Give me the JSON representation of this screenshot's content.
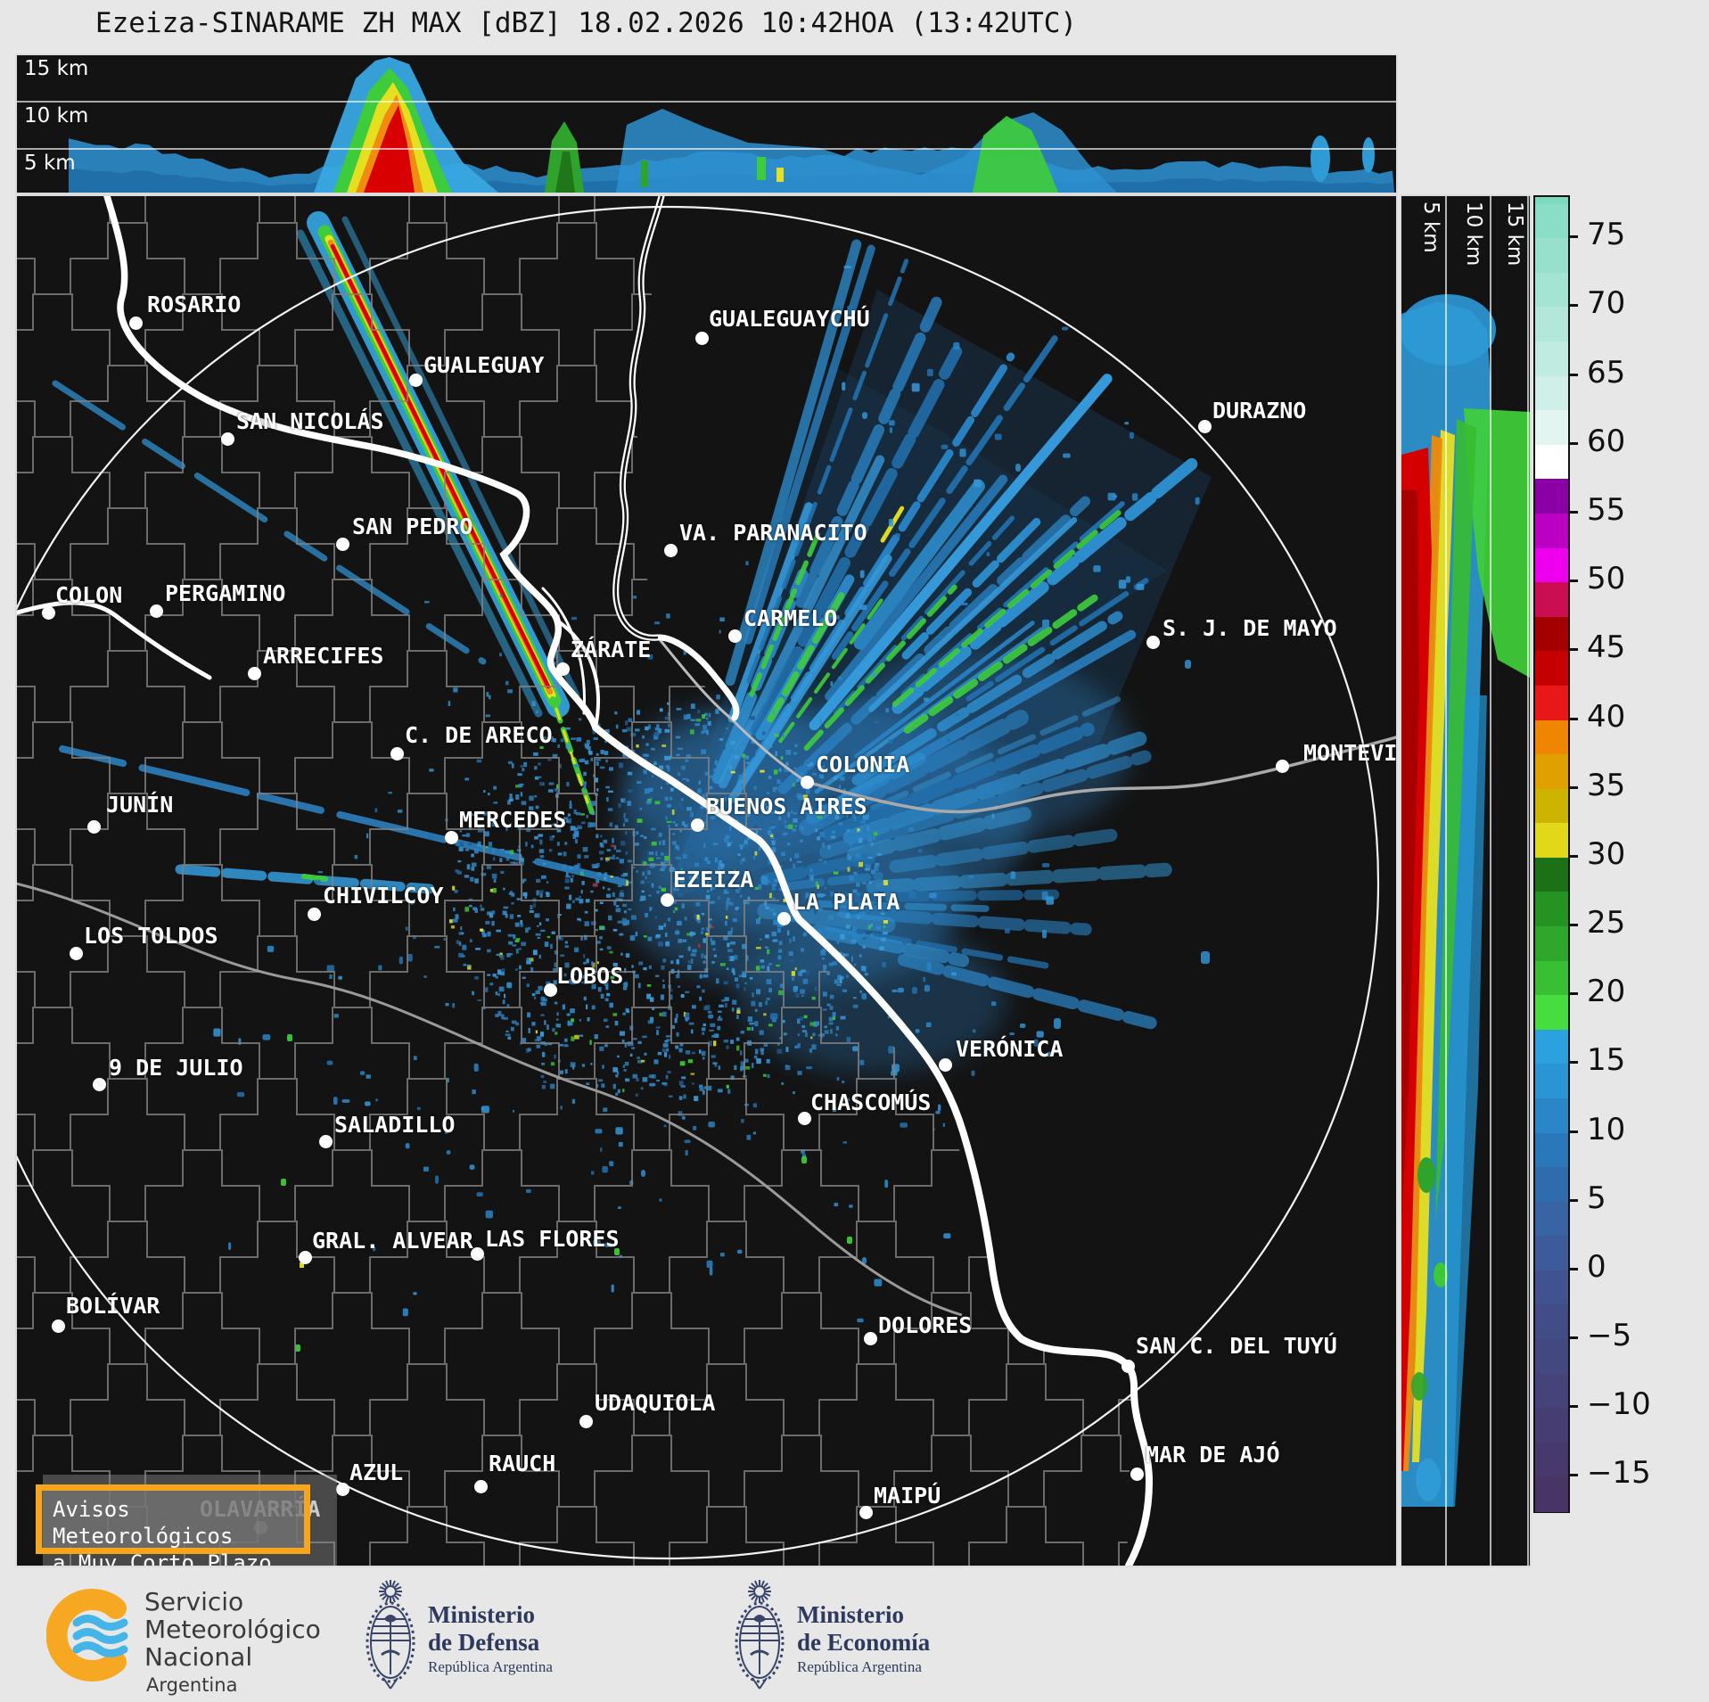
{
  "title": "Ezeiza-SINARAME ZH MAX [dBZ] 18.02.2026 10:42HOA (13:42UTC)",
  "top_panel": {
    "labels": [
      "15 km",
      "10 km",
      "5 km"
    ]
  },
  "right_panel": {
    "labels": [
      "5 km",
      "10 km",
      "15 km"
    ]
  },
  "colorbar": {
    "unit": "dBZ",
    "ticks": [
      75,
      70,
      65,
      60,
      55,
      50,
      45,
      40,
      35,
      30,
      25,
      20,
      15,
      10,
      5,
      0,
      -5,
      -10,
      -15
    ],
    "top_value": 78,
    "bottom_value": -17.5,
    "palette": [
      {
        "hi": 80.0,
        "color": "#7cdabf"
      },
      {
        "hi": 77.5,
        "color": "#8addc6"
      },
      {
        "hi": 75.0,
        "color": "#97e0cc"
      },
      {
        "hi": 72.5,
        "color": "#a4e4d3"
      },
      {
        "hi": 70.0,
        "color": "#b2e7da"
      },
      {
        "hi": 67.5,
        "color": "#c0ebe1"
      },
      {
        "hi": 65.0,
        "color": "#cfefe8"
      },
      {
        "hi": 62.5,
        "color": "#e2f5f0"
      },
      {
        "hi": 60.0,
        "color": "#ffffff"
      },
      {
        "hi": 57.5,
        "color": "#8a00a5"
      },
      {
        "hi": 55.0,
        "color": "#bb00c4"
      },
      {
        "hi": 52.5,
        "color": "#ee00ee"
      },
      {
        "hi": 50.0,
        "color": "#cb0e52"
      },
      {
        "hi": 47.5,
        "color": "#a30000"
      },
      {
        "hi": 45.0,
        "color": "#c40000"
      },
      {
        "hi": 42.5,
        "color": "#e81818"
      },
      {
        "hi": 40.0,
        "color": "#ef8500"
      },
      {
        "hi": 37.5,
        "color": "#dfa000"
      },
      {
        "hi": 35.0,
        "color": "#cdb400"
      },
      {
        "hi": 32.5,
        "color": "#e0d818"
      },
      {
        "hi": 30.0,
        "color": "#1c7016"
      },
      {
        "hi": 27.5,
        "color": "#259322"
      },
      {
        "hi": 25.0,
        "color": "#2ea72a"
      },
      {
        "hi": 22.5,
        "color": "#38bf33"
      },
      {
        "hi": 20.0,
        "color": "#46dd3e"
      },
      {
        "hi": 17.5,
        "color": "#2ba2de"
      },
      {
        "hi": 15.0,
        "color": "#2b94d3"
      },
      {
        "hi": 12.5,
        "color": "#2a86c7"
      },
      {
        "hi": 10.0,
        "color": "#2a78ba"
      },
      {
        "hi": 7.5,
        "color": "#2e6cae"
      },
      {
        "hi": 5.0,
        "color": "#3864a4"
      },
      {
        "hi": 2.5,
        "color": "#3d5b9a"
      },
      {
        "hi": 0.0,
        "color": "#405390"
      },
      {
        "hi": -2.5,
        "color": "#424c87"
      },
      {
        "hi": -5.0,
        "color": "#444880"
      },
      {
        "hi": -7.5,
        "color": "#45437a"
      },
      {
        "hi": -10.0,
        "color": "#463e73"
      },
      {
        "hi": -12.5,
        "color": "#47396c"
      },
      {
        "hi": -15.0,
        "color": "#483566"
      }
    ]
  },
  "map": {
    "cities": [
      {
        "name": "ROSARIO",
        "dot": [
          133,
          142
        ],
        "label": [
          146,
          107
        ]
      },
      {
        "name": "GUALEGUAYCHÚ",
        "dot": [
          768,
          159
        ],
        "label": [
          776,
          123
        ]
      },
      {
        "name": "GUALEGUAY",
        "dot": [
          447,
          206
        ],
        "label": [
          456,
          175
        ]
      },
      {
        "name": "SAN NICOLÁS",
        "dot": [
          236,
          272
        ],
        "label": [
          246,
          238
        ]
      },
      {
        "name": "DURAZNO",
        "dot": [
          1332,
          258
        ],
        "label": [
          1341,
          226
        ]
      },
      {
        "name": "SAN PEDRO",
        "dot": [
          365,
          390
        ],
        "label": [
          376,
          356
        ]
      },
      {
        "name": "VA. PARANACITO",
        "dot": [
          733,
          397
        ],
        "label": [
          743,
          363
        ]
      },
      {
        "name": "COLON",
        "dot": [
          35,
          467
        ],
        "label": [
          43,
          433
        ]
      },
      {
        "name": "PERGAMINO",
        "dot": [
          156,
          465
        ],
        "label": [
          166,
          431
        ]
      },
      {
        "name": "CARMELO",
        "dot": [
          805,
          493
        ],
        "label": [
          815,
          459
        ]
      },
      {
        "name": "S. J. DE MAYO",
        "dot": [
          1274,
          500
        ],
        "label": [
          1285,
          470
        ]
      },
      {
        "name": "ARRECIFES",
        "dot": [
          266,
          535
        ],
        "label": [
          276,
          501
        ]
      },
      {
        "name": "ZÁRATE",
        "dot": [
          612,
          530
        ],
        "label": [
          621,
          494
        ]
      },
      {
        "name": "C. DE ARECO",
        "dot": [
          426,
          625
        ],
        "label": [
          435,
          590
        ]
      },
      {
        "name": "COLONIA",
        "dot": [
          886,
          657
        ],
        "label": [
          896,
          623
        ]
      },
      {
        "name": "MONTEVIDEO",
        "dot": [
          1419,
          639
        ],
        "label": [
          1443,
          610
        ]
      },
      {
        "name": "JUNÍN",
        "dot": [
          86,
          707
        ],
        "label": [
          100,
          668
        ]
      },
      {
        "name": "MERCEDES",
        "dot": [
          487,
          719
        ],
        "label": [
          496,
          685
        ]
      },
      {
        "name": "BUENOS AIRES",
        "dot": [
          763,
          705
        ],
        "label": [
          773,
          670
        ]
      },
      {
        "name": "EZEIZA",
        "dot": [
          729,
          789
        ],
        "label": [
          736,
          752
        ]
      },
      {
        "name": "CHIVILCOY",
        "dot": [
          333,
          805
        ],
        "label": [
          343,
          770
        ]
      },
      {
        "name": "LA PLATA",
        "dot": [
          860,
          810
        ],
        "label": [
          870,
          777
        ]
      },
      {
        "name": "LOS TOLDOS",
        "dot": [
          66,
          849
        ],
        "label": [
          75,
          815
        ]
      },
      {
        "name": "LOBOS",
        "dot": [
          598,
          890
        ],
        "label": [
          605,
          860
        ]
      },
      {
        "name": "VERÓNICA",
        "dot": [
          1041,
          974
        ],
        "label": [
          1053,
          942
        ]
      },
      {
        "name": "9 DE JULIO",
        "dot": [
          92,
          996
        ],
        "label": [
          103,
          963
        ]
      },
      {
        "name": "CHASCOMÚS",
        "dot": [
          883,
          1034
        ],
        "label": [
          890,
          1002
        ]
      },
      {
        "name": "SALADILLO",
        "dot": [
          346,
          1060
        ],
        "label": [
          356,
          1027
        ]
      },
      {
        "name": "GRAL. ALVEAR",
        "dot": [
          323,
          1190
        ],
        "label": [
          331,
          1157
        ]
      },
      {
        "name": "LAS FLORES",
        "dot": [
          516,
          1186
        ],
        "label": [
          525,
          1155
        ]
      },
      {
        "name": "BOLÍVAR",
        "dot": [
          46,
          1267
        ],
        "label": [
          55,
          1230
        ]
      },
      {
        "name": "DOLORES",
        "dot": [
          957,
          1281
        ],
        "label": [
          966,
          1252
        ]
      },
      {
        "name": "SAN C. DEL TUYÚ",
        "dot": [
          1246,
          1312
        ],
        "label": [
          1255,
          1275
        ]
      },
      {
        "name": "UDAQUIOLA",
        "dot": [
          638,
          1374
        ],
        "label": [
          648,
          1339
        ]
      },
      {
        "name": "AZUL",
        "dot": [
          365,
          1450
        ],
        "label": [
          373,
          1417
        ]
      },
      {
        "name": "RAUCH",
        "dot": [
          520,
          1447
        ],
        "label": [
          529,
          1407
        ]
      },
      {
        "name": "MAR DE AJÓ",
        "dot": [
          1256,
          1433
        ],
        "label": [
          1266,
          1397
        ]
      },
      {
        "name": "MAIPÚ",
        "dot": [
          952,
          1476
        ],
        "label": [
          961,
          1443
        ]
      },
      {
        "name": "OLAVARRÍA",
        "dot": [
          273,
          1493
        ],
        "label": [
          205,
          1458
        ],
        "dimmed": true
      }
    ]
  },
  "warning_box": {
    "line1": "Avisos Meteorológicos",
    "line2": "a Muy Corto Plazo",
    "border_color": "#f6a61c"
  },
  "footer": {
    "smn": {
      "line1": "Servicio",
      "line2": "Meteorológico",
      "line3": "Nacional",
      "line4": "Argentina"
    },
    "ministries": [
      {
        "line1": "Ministerio",
        "line2": "de Defensa",
        "line3": "República Argentina"
      },
      {
        "line1": "Ministerio",
        "line2": "de Economía",
        "line3": "República Argentina"
      }
    ]
  }
}
